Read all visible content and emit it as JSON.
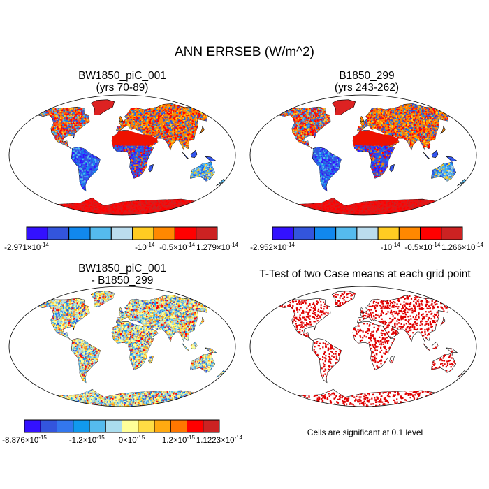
{
  "title": "ANN ERRSEB (W/m^2)",
  "colors": {
    "land": "#ffffff",
    "ocean": "#ffffff",
    "outline": "#000000",
    "signif": "#e00000"
  },
  "panels": [
    {
      "title_line1": "BW1850_piC_001",
      "title_line2": "(yrs 70-89)",
      "colorbar": {
        "colors": [
          "#3311ff",
          "#3355dd",
          "#1188ee",
          "#55bbee",
          "#bbddee",
          "#ffcc22",
          "#ff8800",
          "#ff0000",
          "#cc2222"
        ],
        "labels": [
          {
            "mant": "-2.971",
            "exp": "-14"
          },
          {
            "mant": "-10",
            "exp": "-14",
            "bare": true
          },
          {
            "mant": "-0.5",
            "exp": "-14"
          },
          {
            "mant": "1.279",
            "exp": "-14"
          }
        ]
      }
    },
    {
      "title_line1": "B1850_299",
      "title_line2": "(yrs 243-262)",
      "colorbar": {
        "colors": [
          "#3311ff",
          "#3355dd",
          "#1188ee",
          "#55bbee",
          "#bbddee",
          "#ffcc22",
          "#ff8800",
          "#ff0000",
          "#cc2222"
        ],
        "labels": [
          {
            "mant": "-2.952",
            "exp": "-14"
          },
          {
            "mant": "-10",
            "exp": "-14",
            "bare": true
          },
          {
            "mant": "-0.5",
            "exp": "-14"
          },
          {
            "mant": "1.266",
            "exp": "-14"
          }
        ]
      }
    },
    {
      "title_line1": "BW1850_piC_001",
      "title_line2": "- B1850_299",
      "colorbar": {
        "colors": [
          "#3311ff",
          "#3355dd",
          "#3377ee",
          "#1199ee",
          "#55bbee",
          "#aaddee",
          "#ffff99",
          "#ffdd44",
          "#ffaa11",
          "#ff7700",
          "#ff0000",
          "#cc2222"
        ],
        "labels": [
          {
            "mant": "-8.876",
            "exp": "-15"
          },
          {
            "mant": "-1.2",
            "exp": "-15"
          },
          {
            "mant": "0",
            "exp": "-15"
          },
          {
            "mant": "1.2",
            "exp": "-15"
          },
          {
            "mant": "1.1223",
            "exp": "-14"
          }
        ]
      }
    },
    {
      "title_line1": "T-Test of two Case means at each grid point",
      "title_line2": "",
      "note": "Cells are significant at 0.1 level"
    }
  ],
  "chart_data": [
    {
      "type": "heatmap",
      "title": "BW1850_piC_001 (yrs 70-89)",
      "projection": "robinson",
      "field": "ANN ERRSEB",
      "units": "W/m^2",
      "color_levels_labels": [
        "-2.971×10^-14",
        "-10^-14",
        "-0.5×10^-14",
        "1.279×10^-14"
      ],
      "vmin": -2.971e-14,
      "vmax": 1.279e-14,
      "regional_pattern": {
        "north_america_high_lat": "positive (red)",
        "greenland": "positive (red)",
        "northern_eurasia": "positive (red/orange)",
        "sahara_arabia": "positive (red)",
        "antarctica": "positive (red)",
        "tropical_south_america": "negative (blue)",
        "central_southern_africa": "negative (blue)",
        "south_asia_maritime": "negative (blue)"
      }
    },
    {
      "type": "heatmap",
      "title": "B1850_299 (yrs 243-262)",
      "projection": "robinson",
      "field": "ANN ERRSEB",
      "units": "W/m^2",
      "color_levels_labels": [
        "-2.952×10^-14",
        "-10^-14",
        "-0.5×10^-14",
        "1.266×10^-14"
      ],
      "vmin": -2.952e-14,
      "vmax": 1.266e-14
    },
    {
      "type": "heatmap",
      "title": "BW1850_piC_001 - B1850_299",
      "projection": "robinson",
      "field": "ANN ERRSEB difference",
      "units": "W/m^2",
      "color_levels_labels": [
        "-8.876×10^-15",
        "-1.2×10^-15",
        "0×10^-15",
        "1.2×10^-15",
        "1.1223×10^-14"
      ],
      "vmin": -8.876e-15,
      "vmax": 1.1223e-14
    },
    {
      "type": "heatmap",
      "title": "T-Test of two Case means at each grid point",
      "projection": "robinson",
      "significance_level": 0.1,
      "legend": "Cells are significant at 0.1 level"
    }
  ]
}
